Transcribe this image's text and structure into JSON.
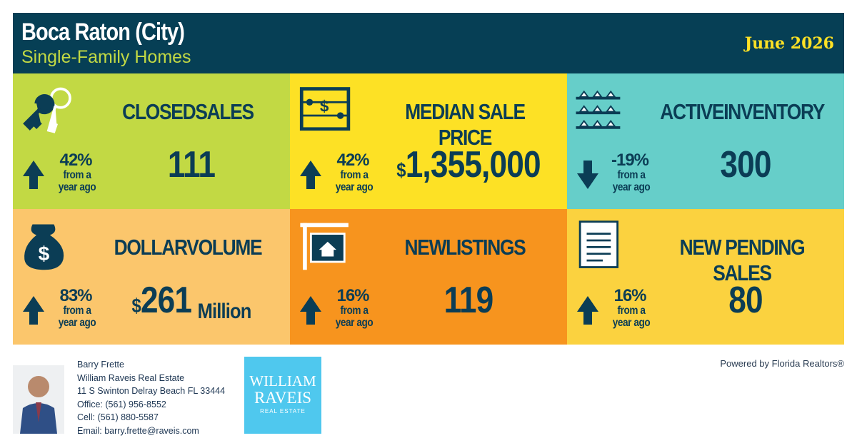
{
  "header": {
    "title": "Boca Raton (City)",
    "subtitle": "Single-Family Homes",
    "date": "June 2026"
  },
  "tiles": [
    {
      "title": "CLOSEDSALES",
      "change": "42%",
      "note": [
        "from a",
        "year ago"
      ],
      "trend": "up",
      "value": "111",
      "color": "#c2d944"
    },
    {
      "title": "MEDIAN SALE PRICE",
      "change": "42%",
      "note": [
        "from a",
        "year ago"
      ],
      "trend": "up",
      "prefix": "$",
      "value": "1,355,000",
      "color": "#fde125"
    },
    {
      "title": "ACTIVEINVENTORY",
      "change": "-19%",
      "note": [
        "from a",
        "year ago"
      ],
      "trend": "down",
      "value": "300",
      "color": "#66cec9"
    },
    {
      "title": "DOLLARVOLUME",
      "change": "83%",
      "note": [
        "from a",
        "year ago"
      ],
      "trend": "up",
      "prefix": "$",
      "value": "261",
      "suffix": "Million",
      "color": "#fbc66c"
    },
    {
      "title": "NEWLISTINGS",
      "change": "16%",
      "note": [
        "from a",
        "year ago"
      ],
      "trend": "up",
      "value": "119",
      "color": "#f7941e"
    },
    {
      "title": "NEW PENDING SALES",
      "change": "16%",
      "note": [
        "from a",
        "year ago"
      ],
      "trend": "up",
      "value": "80",
      "color": "#fbd23f"
    }
  ],
  "agent": {
    "lines": [
      "Barry Frette",
      "William Raveis Real Estate",
      "11 S Swinton Delray Beach FL 33444",
      "Office: (561) 956-8552",
      "Cell: (561) 880-5587",
      "Email: barry.frette@raveis.com"
    ]
  },
  "logo": {
    "line1": "WILLIAM",
    "line2": "RAVEIS",
    "line3": "REAL ESTATE"
  },
  "powered_by": "Powered by Florida Realtors®"
}
